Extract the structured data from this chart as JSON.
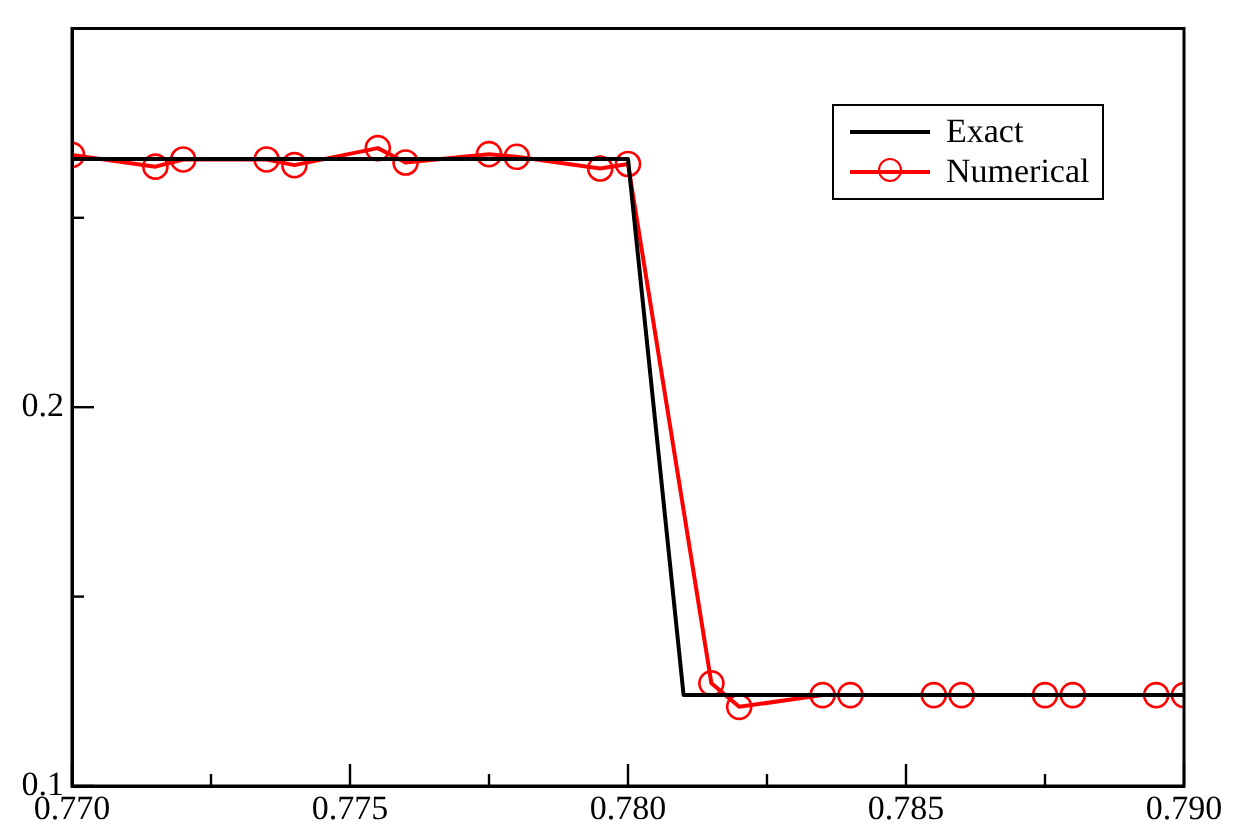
{
  "chart_data": {
    "type": "line",
    "legend": "top right",
    "grid": false,
    "xlim": [
      0.77,
      0.79
    ],
    "xticks": [
      {
        "value": 0.77,
        "label": "0.770"
      },
      {
        "value": 0.7725,
        "label": null
      },
      {
        "value": 0.775,
        "label": "0.775"
      },
      {
        "value": 0.7775,
        "label": null
      },
      {
        "value": 0.78,
        "label": "0.780"
      },
      {
        "value": 0.7825,
        "label": null
      },
      {
        "value": 0.785,
        "label": "0.785"
      },
      {
        "value": 0.7875,
        "label": null
      },
      {
        "value": 0.79,
        "label": "0.790"
      }
    ],
    "ylim": [
      0.1,
      0.3
    ],
    "yticks": [
      0.1,
      {
        "value": 0.15,
        "label": null
      },
      0.2,
      {
        "value": 0.25,
        "label": null
      }
    ],
    "series": [
      {
        "name": "Exact",
        "color": "#000000",
        "marker": "none",
        "x": [
          0.77,
          0.78,
          0.781,
          0.79
        ],
        "values": [
          0.2655,
          0.2655,
          0.124,
          0.124
        ]
      },
      {
        "name": "Numerical",
        "color": "#ff0000",
        "marker": "circle",
        "x": [
          0.77,
          0.7715,
          0.772,
          0.7735,
          0.774,
          0.7755,
          0.776,
          0.7775,
          0.778,
          0.7795,
          0.78,
          0.7815,
          0.782,
          0.7835,
          0.784,
          0.7855,
          0.786,
          0.7875,
          0.788,
          0.7895,
          0.79
        ],
        "values": [
          0.2666,
          0.2635,
          0.2654,
          0.2654,
          0.2639,
          0.2684,
          0.2646,
          0.2668,
          0.2661,
          0.263,
          0.2642,
          0.1271,
          0.1209,
          0.124,
          0.124,
          0.124,
          0.124,
          0.124,
          0.124,
          0.124,
          0.124
        ]
      }
    ]
  }
}
